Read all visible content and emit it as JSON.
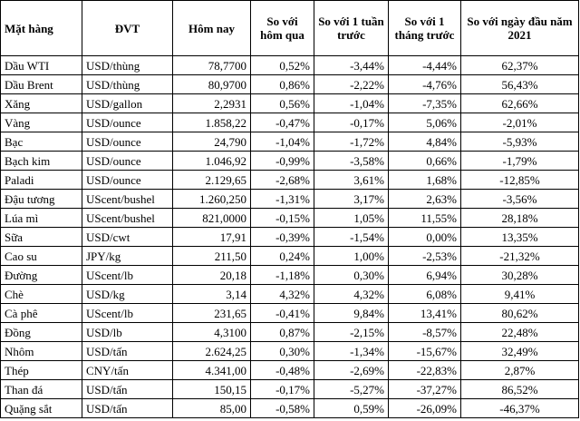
{
  "headers": [
    "Mặt hàng",
    "ĐVT",
    "Hôm nay",
    "So với hôm qua",
    "So với 1 tuần trước",
    "So với 1 tháng trước",
    "So với ngày đầu năm 2021"
  ],
  "rows": [
    [
      "Dầu WTI",
      "USD/thùng",
      "78,7700",
      "0,52%",
      "-3,44%",
      "-4,44%",
      "62,37%"
    ],
    [
      "Dầu Brent",
      "USD/thùng",
      "80,9700",
      "0,86%",
      "-2,22%",
      "-4,76%",
      "56,43%"
    ],
    [
      "Xăng",
      "USD/gallon",
      "2,2931",
      "0,56%",
      "-1,04%",
      "-7,35%",
      "62,66%"
    ],
    [
      "Vàng",
      "USD/ounce",
      "1.858,22",
      "-0,47%",
      "-0,17%",
      "5,06%",
      "-2,01%"
    ],
    [
      "Bạc",
      "USD/ounce",
      "24,790",
      "-1,04%",
      "-1,72%",
      "4,84%",
      "-5,93%"
    ],
    [
      "Bạch kim",
      "USD/ounce",
      "1.046,92",
      "-0,99%",
      "-3,58%",
      "0,66%",
      "-1,79%"
    ],
    [
      "Paladi",
      "USD/ounce",
      "2.129,65",
      "-2,68%",
      "3,61%",
      "1,68%",
      "-12,85%"
    ],
    [
      "Đậu tương",
      "UScent/bushel",
      "1.260,250",
      "-1,31%",
      "3,17%",
      "2,63%",
      "-3,56%"
    ],
    [
      "Lúa mì",
      "UScent/bushel",
      "821,0000",
      "-0,15%",
      "1,05%",
      "11,55%",
      "28,18%"
    ],
    [
      "Sữa",
      "USD/cwt",
      "17,91",
      "-0,39%",
      "-1,54%",
      "0,00%",
      "13,35%"
    ],
    [
      "Cao su",
      "JPY/kg",
      "211,50",
      "0,24%",
      "1,00%",
      "-2,53%",
      "-21,32%"
    ],
    [
      "Đường",
      "UScent/lb",
      "20,18",
      "-1,18%",
      "0,30%",
      "6,94%",
      "30,28%"
    ],
    [
      "Chè",
      "USD/kg",
      "3,14",
      "4,32%",
      "4,32%",
      "6,08%",
      "9,41%"
    ],
    [
      "Cà phê",
      "UScent/lb",
      "231,65",
      "-0,41%",
      "9,84%",
      "13,41%",
      "80,62%"
    ],
    [
      "Đồng",
      "USD/lb",
      "4,3100",
      "0,87%",
      "-2,15%",
      "-8,57%",
      "22,48%"
    ],
    [
      "Nhôm",
      "USD/tấn",
      "2.624,25",
      "0,30%",
      "-1,34%",
      "-15,67%",
      "32,49%"
    ],
    [
      "Thép",
      "CNY/tấn",
      "4.341,00",
      "-0,48%",
      "-2,69%",
      "-22,83%",
      "2,87%"
    ],
    [
      "Than đá",
      "USD/tấn",
      "150,15",
      "-0,17%",
      "-5,27%",
      "-37,27%",
      "86,52%"
    ],
    [
      "Quặng sắt",
      "USD/tấn",
      "85,00",
      "-0,58%",
      "0,59%",
      "-26,09%",
      "-46,37%"
    ]
  ]
}
